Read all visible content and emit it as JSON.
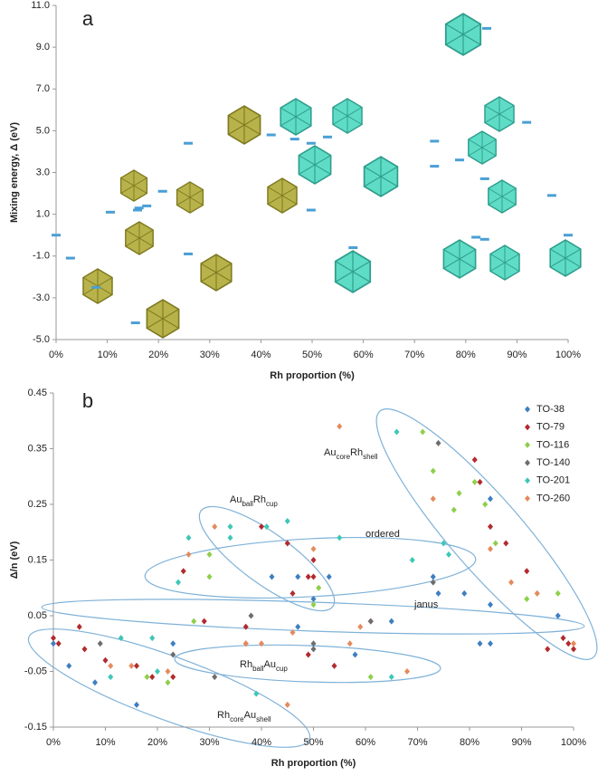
{
  "chart_data": [
    {
      "type": "scatter",
      "panel_label": "a",
      "marker": "dash",
      "x_label": "Rh proportion (%)",
      "y_label": "Mixing energy, Δ (eV)",
      "color": "#4a9fd5",
      "x": [
        0,
        2.8,
        7.8,
        10.6,
        15.5,
        15.9,
        16.2,
        17.7,
        20.8,
        25.8,
        25.8,
        42,
        46.6,
        49.8,
        49.8,
        53,
        58,
        73.9,
        73.9,
        78.8,
        82,
        83.7,
        83.7,
        84.1,
        91.9,
        96.8,
        100
      ],
      "values": [
        0,
        -1.1,
        -2.5,
        1.1,
        -4.2,
        1.2,
        1.3,
        1.4,
        2.1,
        4.4,
        -0.9,
        4.8,
        4.6,
        4.4,
        1.2,
        4.7,
        -0.6,
        4.5,
        3.3,
        3.6,
        -0.1,
        2.7,
        -0.2,
        9.9,
        5.4,
        1.9,
        0
      ],
      "xlim": [
        0,
        100
      ],
      "xticks": [
        {
          "value": 0,
          "label": "0%"
        },
        {
          "value": 10,
          "label": "10%"
        },
        {
          "value": 20,
          "label": "20%"
        },
        {
          "value": 30,
          "label": "30%"
        },
        {
          "value": 40,
          "label": "40%"
        },
        {
          "value": 50,
          "label": "50%"
        },
        {
          "value": 60,
          "label": "60%"
        },
        {
          "value": 70,
          "label": "70%"
        },
        {
          "value": 80,
          "label": "80%"
        },
        {
          "value": 90,
          "label": "90%"
        },
        {
          "value": 100,
          "label": "100%"
        }
      ],
      "ylim": [
        -5,
        11
      ],
      "yticks": [
        {
          "value": -5,
          "label": "-5.0"
        },
        {
          "value": -3,
          "label": "-3.0"
        },
        {
          "value": -1,
          "label": "-1.0"
        },
        {
          "value": 1,
          "label": "1.0"
        },
        {
          "value": 3,
          "label": "3.0"
        },
        {
          "value": 5,
          "label": "5.0"
        },
        {
          "value": 7,
          "label": "7.0"
        },
        {
          "value": 9,
          "label": "9.0"
        },
        {
          "value": 11,
          "label": "11.0"
        }
      ]
    },
    {
      "type": "scatter",
      "panel_label": "b",
      "marker": "diamond",
      "legend": "top-right",
      "x_label": "Rh proportion (%)",
      "y_label": "Δ/n (eV)",
      "series": [
        {
          "name": "TO-38",
          "color": "#3d7fc1",
          "x": [
            0,
            3,
            8,
            16,
            23,
            42,
            47,
            47,
            50,
            53,
            58,
            65,
            73,
            74,
            79,
            82,
            84,
            84,
            84,
            97
          ],
          "values": [
            0,
            -0.04,
            -0.07,
            -0.11,
            0,
            0.12,
            0.03,
            0.12,
            0.08,
            0.12,
            -0.02,
            0.04,
            0.12,
            0.09,
            0.09,
            0,
            0.26,
            0.07,
            0,
            0.05
          ]
        },
        {
          "name": "TO-79",
          "color": "#b22a2e",
          "x": [
            0,
            1,
            5,
            6,
            10,
            16,
            19,
            23,
            25,
            29,
            37,
            37,
            40,
            45,
            46,
            49,
            49,
            50,
            50,
            54,
            61,
            81,
            82,
            84,
            87,
            91,
            95,
            98,
            99,
            100
          ],
          "values": [
            0.01,
            0,
            0.03,
            -0.01,
            -0.03,
            -0.04,
            -0.06,
            -0.06,
            0.13,
            0.04,
            0.03,
            0,
            0.21,
            0.18,
            0.09,
            -0.02,
            0.12,
            0.15,
            0.12,
            -0.04,
            0.04,
            0.33,
            0.29,
            0.21,
            0.18,
            0.13,
            -0.01,
            0.01,
            0,
            -0.01
          ]
        },
        {
          "name": "TO-116",
          "color": "#8ecf4a",
          "x": [
            18,
            22,
            27,
            30,
            30,
            50,
            51,
            61,
            71,
            73,
            77,
            78,
            81,
            83,
            85,
            91,
            93,
            97
          ],
          "values": [
            -0.06,
            -0.07,
            0.04,
            0.16,
            0.12,
            0.07,
            0.1,
            -0.06,
            0.38,
            0.31,
            0.24,
            0.27,
            0.29,
            0.25,
            0.18,
            0.08,
            0.09,
            0.09
          ]
        },
        {
          "name": "TO-140",
          "color": "#6d6d6d",
          "x": [
            9,
            23,
            31,
            38,
            50,
            50,
            61,
            74,
            73
          ],
          "values": [
            0,
            -0.02,
            -0.06,
            0.05,
            -0.01,
            0,
            0.04,
            0.36,
            0.11
          ]
        },
        {
          "name": "TO-201",
          "color": "#3ec7b8",
          "x": [
            11,
            13,
            19,
            20,
            24,
            26,
            34,
            34,
            41,
            45,
            55,
            65,
            66,
            69,
            75,
            76,
            39
          ],
          "values": [
            -0.06,
            0.01,
            0.01,
            -0.05,
            0.11,
            0.19,
            0.21,
            0.19,
            0.21,
            0.22,
            0.19,
            -0.06,
            0.38,
            0.15,
            0.18,
            0.16,
            -0.09
          ]
        },
        {
          "name": "TO-260",
          "color": "#e58a5e",
          "x": [
            11,
            15,
            22,
            26,
            31,
            37,
            40,
            46,
            50,
            55,
            57,
            59,
            68,
            73,
            84,
            88,
            93,
            100,
            45
          ],
          "values": [
            -0.04,
            -0.04,
            -0.05,
            0.16,
            0.21,
            0,
            0,
            0.02,
            0.17,
            0.39,
            0,
            0.03,
            -0.05,
            0.26,
            0.17,
            0.11,
            0.09,
            0,
            -0.11
          ]
        }
      ],
      "annotations": [
        {
          "segments": [
            "Au",
            "core",
            "Rh",
            "shell"
          ]
        },
        {
          "segments": [
            "Au",
            "ball",
            "Rh",
            "cup"
          ]
        },
        {
          "segments": [
            "ordered"
          ]
        },
        {
          "segments": [
            "janus"
          ]
        },
        {
          "segments": [
            "Rh",
            "ball",
            "Au",
            "cup"
          ]
        },
        {
          "segments": [
            "Rh",
            "core",
            "Au",
            "shell"
          ]
        }
      ],
      "xlim": [
        0,
        100
      ],
      "xticks": [
        {
          "value": 0,
          "label": "0%"
        },
        {
          "value": 10,
          "label": "10%"
        },
        {
          "value": 20,
          "label": "20%"
        },
        {
          "value": 30,
          "label": "30%"
        },
        {
          "value": 40,
          "label": "40%"
        },
        {
          "value": 50,
          "label": "50%"
        },
        {
          "value": 60,
          "label": "60%"
        },
        {
          "value": 70,
          "label": "70%"
        },
        {
          "value": 80,
          "label": "80%"
        },
        {
          "value": 90,
          "label": "90%"
        },
        {
          "value": 100,
          "label": "100%"
        }
      ],
      "ylim": [
        -0.15,
        0.45
      ],
      "yticks": [
        -0.15,
        -0.05,
        0.05,
        0.15,
        0.25,
        0.35,
        0.45
      ]
    }
  ]
}
